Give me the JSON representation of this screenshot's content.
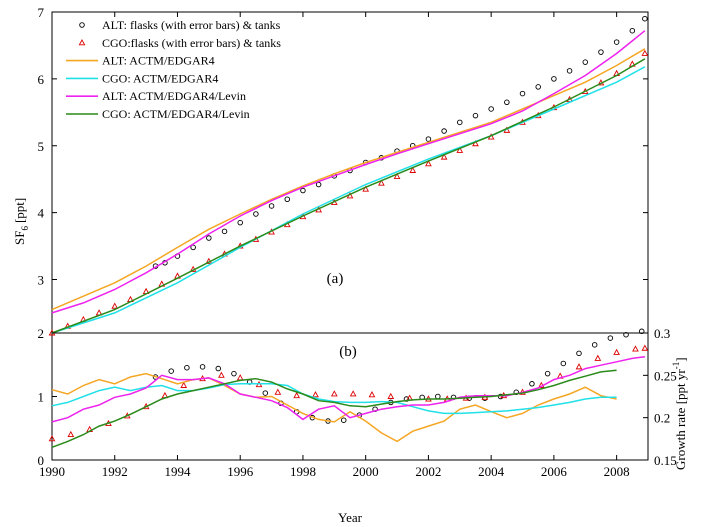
{
  "chart_data": [
    {
      "panel": "(a)",
      "type": "line",
      "ylabel": "SF₆ [ppt]",
      "ylabel_main": "SF",
      "ylabel_sub": "6",
      "ylabel_unit": "[ppt]",
      "ylim": [
        2.2,
        7
      ],
      "xlim": [
        1990,
        2009
      ],
      "yticks": [
        3,
        4,
        5,
        6,
        7
      ],
      "series": [
        {
          "name": "ALT: flasks (with error bars) & tanks",
          "marker": "circle",
          "color": "#000000",
          "x": [
            1993.3,
            1993.6,
            1994.0,
            1994.5,
            1995.0,
            1995.5,
            1996.0,
            1996.5,
            1997.0,
            1997.5,
            1998.0,
            1998.5,
            1999.0,
            1999.5,
            2000.0,
            2000.5,
            2001.0,
            2001.5,
            2002.0,
            2002.5,
            2003.0,
            2003.5,
            2004.0,
            2004.5,
            2005.0,
            2005.5,
            2006.0,
            2006.5,
            2007.0,
            2007.5,
            2008.0,
            2008.5,
            2008.9
          ],
          "values": [
            3.2,
            3.25,
            3.35,
            3.48,
            3.62,
            3.72,
            3.85,
            3.98,
            4.1,
            4.2,
            4.33,
            4.42,
            4.55,
            4.63,
            4.75,
            4.82,
            4.92,
            5.0,
            5.1,
            5.22,
            5.35,
            5.45,
            5.55,
            5.65,
            5.78,
            5.88,
            6.0,
            6.12,
            6.25,
            6.4,
            6.55,
            6.72,
            6.9
          ]
        },
        {
          "name": "CGO:flasks (with error bars) & tanks",
          "marker": "triangle",
          "color": "#dd0000",
          "x": [
            1990.0,
            1990.5,
            1991.0,
            1991.5,
            1992.0,
            1992.5,
            1993.0,
            1993.5,
            1994.0,
            1994.5,
            1995.0,
            1995.5,
            1996.0,
            1996.5,
            1997.0,
            1997.5,
            1998.0,
            1998.5,
            1999.0,
            1999.5,
            2000.0,
            2000.5,
            2001.0,
            2001.5,
            2002.0,
            2002.5,
            2003.0,
            2003.5,
            2004.0,
            2004.5,
            2005.0,
            2005.5,
            2006.0,
            2006.5,
            2007.0,
            2007.5,
            2008.0,
            2008.5,
            2008.9
          ],
          "values": [
            2.2,
            2.3,
            2.4,
            2.5,
            2.6,
            2.7,
            2.82,
            2.93,
            3.05,
            3.15,
            3.27,
            3.38,
            3.5,
            3.6,
            3.71,
            3.82,
            3.94,
            4.04,
            4.15,
            4.25,
            4.35,
            4.44,
            4.54,
            4.63,
            4.73,
            4.83,
            4.93,
            5.03,
            5.13,
            5.23,
            5.35,
            5.45,
            5.57,
            5.69,
            5.81,
            5.94,
            6.08,
            6.22,
            6.38
          ]
        },
        {
          "name": "ALT: ACTM/EDGAR4",
          "color": "#f5a623",
          "x": [
            1990.0,
            1991.0,
            1992.0,
            1993.0,
            1994.0,
            1995.0,
            1996.0,
            1997.0,
            1998.0,
            1999.0,
            2000.0,
            2001.0,
            2002.0,
            2003.0,
            2004.0,
            2005.0,
            2006.0,
            2007.0,
            2008.0,
            2008.9
          ],
          "values": [
            2.55,
            2.75,
            2.95,
            3.2,
            3.48,
            3.75,
            3.98,
            4.2,
            4.4,
            4.58,
            4.75,
            4.9,
            5.05,
            5.2,
            5.35,
            5.55,
            5.75,
            5.95,
            6.2,
            6.45
          ]
        },
        {
          "name": "CGO: ACTM/EDGAR4",
          "color": "#20e0e8",
          "x": [
            1990.0,
            1992.0,
            1994.0,
            1996.0,
            1998.0,
            2000.0,
            2002.0,
            2004.0,
            2006.0,
            2008.0,
            2008.9
          ],
          "values": [
            2.2,
            2.5,
            2.95,
            3.48,
            3.98,
            4.42,
            4.8,
            5.15,
            5.55,
            5.95,
            6.18
          ]
        },
        {
          "name": "ALT: ACTM/EDGAR4/Levin",
          "color": "#ee22ee",
          "x": [
            1990.0,
            1991.0,
            1992.0,
            1993.0,
            1994.0,
            1995.0,
            1996.0,
            1997.0,
            1998.0,
            1999.0,
            2000.0,
            2001.0,
            2002.0,
            2003.0,
            2004.0,
            2005.0,
            2006.0,
            2007.0,
            2008.0,
            2008.9
          ],
          "values": [
            2.5,
            2.65,
            2.85,
            3.1,
            3.38,
            3.68,
            3.95,
            4.18,
            4.38,
            4.55,
            4.72,
            4.88,
            5.03,
            5.18,
            5.33,
            5.52,
            5.78,
            6.05,
            6.38,
            6.72
          ]
        },
        {
          "name": "CGO: ACTM/EDGAR4/Levin",
          "color": "#2a8a1a",
          "x": [
            1990.0,
            1992.0,
            1994.0,
            1996.0,
            1998.0,
            2000.0,
            2002.0,
            2004.0,
            2006.0,
            2008.0,
            2008.9
          ],
          "values": [
            2.2,
            2.55,
            3.02,
            3.5,
            3.95,
            4.38,
            4.77,
            5.15,
            5.58,
            6.05,
            6.3
          ]
        }
      ]
    },
    {
      "panel": "(b)",
      "type": "line",
      "xlabel": "Year",
      "ylabel_right": "Growth rate [ppt yr⁻¹]",
      "ylabel_right_main": "Growth rate [ppt yr",
      "ylabel_right_sup": "-1",
      "ylabel_right_end": "]",
      "xlim": [
        1990,
        2009
      ],
      "ylim_left": [
        0,
        2
      ],
      "ylim_right": [
        0.15,
        0.3
      ],
      "xticks": [
        1990,
        1992,
        1994,
        1996,
        1998,
        2000,
        2002,
        2004,
        2006,
        2008
      ],
      "yticks_left": [
        0,
        1,
        2
      ],
      "yticks_right": [
        0.15,
        0.2,
        0.25,
        0.3
      ],
      "series": [
        {
          "name": "ALT: flasks (with error bars) & tanks",
          "marker": "circle",
          "color": "#000000",
          "x": [
            1993.3,
            1993.8,
            1994.3,
            1994.8,
            1995.3,
            1995.8,
            1996.3,
            1996.8,
            1997.3,
            1997.8,
            1998.3,
            1998.8,
            1999.3,
            1999.8,
            2000.3,
            2000.8,
            2001.3,
            2001.8,
            2002.3,
            2002.8,
            2003.3,
            2003.8,
            2004.3,
            2004.8,
            2005.3,
            2005.8,
            2006.3,
            2006.8,
            2007.3,
            2007.8,
            2008.3,
            2008.8
          ],
          "values": [
            0.248,
            0.255,
            0.259,
            0.26,
            0.258,
            0.252,
            0.242,
            0.229,
            0.217,
            0.207,
            0.2,
            0.196,
            0.197,
            0.203,
            0.21,
            0.218,
            0.222,
            0.224,
            0.225,
            0.224,
            0.223,
            0.223,
            0.225,
            0.23,
            0.24,
            0.252,
            0.264,
            0.276,
            0.286,
            0.294,
            0.298,
            0.302
          ]
        },
        {
          "name": "CGO:flasks (with error bars) & tanks",
          "marker": "triangle",
          "color": "#dd0000",
          "x": [
            1990.0,
            1990.6,
            1991.2,
            1991.8,
            1992.4,
            1993.0,
            1993.6,
            1994.2,
            1994.8,
            1995.4,
            1996.0,
            1996.6,
            1997.2,
            1997.8,
            1998.4,
            1999.0,
            1999.6,
            2000.2,
            2000.8,
            2001.4,
            2002.0,
            2002.6,
            2003.2,
            2003.8,
            2004.4,
            2005.0,
            2005.6,
            2006.2,
            2006.8,
            2007.4,
            2008.0,
            2008.6,
            2008.9
          ],
          "values": [
            0.175,
            0.18,
            0.186,
            0.193,
            0.202,
            0.213,
            0.226,
            0.238,
            0.246,
            0.25,
            0.247,
            0.239,
            0.23,
            0.226,
            0.227,
            0.228,
            0.228,
            0.227,
            0.225,
            0.223,
            0.222,
            0.222,
            0.223,
            0.224,
            0.226,
            0.23,
            0.238,
            0.249,
            0.26,
            0.27,
            0.277,
            0.281,
            0.282
          ]
        },
        {
          "name": "ALT: ACTM/EDGAR4",
          "color": "#f5a623",
          "x": [
            1990.0,
            1990.5,
            1991.0,
            1991.5,
            1992.0,
            1992.5,
            1993.0,
            1993.5,
            1994.0,
            1994.5,
            1995.0,
            1995.5,
            1996.0,
            1996.5,
            1997.0,
            1997.5,
            1998.0,
            1998.5,
            1999.0,
            1999.5,
            2000.0,
            2000.5,
            2001.0,
            2001.5,
            2002.0,
            2002.5,
            2003.0,
            2003.5,
            2004.0,
            2004.5,
            2005.0,
            2005.5,
            2006.0,
            2006.5,
            2007.0,
            2007.5,
            2008.0
          ],
          "values": [
            0.233,
            0.228,
            0.238,
            0.245,
            0.24,
            0.248,
            0.252,
            0.246,
            0.24,
            0.245,
            0.247,
            0.238,
            0.228,
            0.224,
            0.225,
            0.215,
            0.205,
            0.198,
            0.195,
            0.207,
            0.196,
            0.182,
            0.172,
            0.184,
            0.19,
            0.196,
            0.21,
            0.215,
            0.207,
            0.2,
            0.205,
            0.215,
            0.222,
            0.228,
            0.236,
            0.226,
            0.222
          ]
        },
        {
          "name": "CGO: ACTM/EDGAR4",
          "color": "#20e0e8",
          "x": [
            1990.0,
            1990.5,
            1991.0,
            1991.5,
            1992.0,
            1992.5,
            1993.0,
            1993.5,
            1994.0,
            1994.5,
            1995.0,
            1995.5,
            1996.0,
            1996.5,
            1997.0,
            1997.5,
            1998.0,
            1998.5,
            1999.0,
            1999.5,
            2000.0,
            2000.5,
            2001.0,
            2001.5,
            2002.0,
            2002.5,
            2003.0,
            2003.5,
            2004.0,
            2004.5,
            2005.0,
            2005.5,
            2006.0,
            2006.5,
            2007.0,
            2007.5,
            2008.0
          ],
          "values": [
            0.214,
            0.218,
            0.225,
            0.232,
            0.236,
            0.232,
            0.236,
            0.238,
            0.232,
            0.232,
            0.235,
            0.239,
            0.24,
            0.24,
            0.24,
            0.238,
            0.228,
            0.222,
            0.219,
            0.218,
            0.218,
            0.219,
            0.218,
            0.213,
            0.208,
            0.205,
            0.205,
            0.206,
            0.207,
            0.208,
            0.21,
            0.212,
            0.215,
            0.218,
            0.222,
            0.224,
            0.224
          ]
        },
        {
          "name": "ALT: ACTM/EDGAR4/Levin",
          "color": "#ee22ee",
          "x": [
            1990.0,
            1990.5,
            1991.0,
            1991.5,
            1992.0,
            1992.5,
            1993.0,
            1993.5,
            1994.0,
            1994.5,
            1995.0,
            1995.5,
            1996.0,
            1996.5,
            1997.0,
            1997.5,
            1998.0,
            1998.5,
            1999.0,
            1999.5,
            2000.0,
            2000.5,
            2001.0,
            2001.5,
            2002.0,
            2002.5,
            2003.0,
            2003.5,
            2004.0,
            2004.5,
            2005.0,
            2005.5,
            2006.0,
            2006.5,
            2007.0,
            2007.5,
            2008.0,
            2008.5,
            2008.9
          ],
          "values": [
            0.195,
            0.2,
            0.21,
            0.215,
            0.224,
            0.228,
            0.235,
            0.25,
            0.245,
            0.245,
            0.247,
            0.24,
            0.228,
            0.224,
            0.22,
            0.212,
            0.198,
            0.21,
            0.214,
            0.2,
            0.205,
            0.21,
            0.213,
            0.215,
            0.215,
            0.218,
            0.224,
            0.226,
            0.226,
            0.226,
            0.23,
            0.235,
            0.245,
            0.25,
            0.258,
            0.262,
            0.266,
            0.27,
            0.272
          ]
        },
        {
          "name": "CGO: ACTM/EDGAR4/Levin",
          "color": "#2a8a1a",
          "x": [
            1990.0,
            1990.5,
            1991.0,
            1991.5,
            1992.0,
            1992.5,
            1993.0,
            1993.5,
            1994.0,
            1994.5,
            1995.0,
            1995.5,
            1996.0,
            1996.5,
            1997.0,
            1997.5,
            1998.0,
            1998.5,
            1999.0,
            1999.5,
            2000.0,
            2000.5,
            2001.0,
            2001.5,
            2002.0,
            2002.5,
            2003.0,
            2003.5,
            2004.0,
            2004.5,
            2005.0,
            2005.5,
            2006.0,
            2006.5,
            2007.0,
            2007.5,
            2008.0
          ],
          "values": [
            0.165,
            0.172,
            0.18,
            0.19,
            0.196,
            0.204,
            0.213,
            0.222,
            0.228,
            0.232,
            0.236,
            0.24,
            0.244,
            0.246,
            0.242,
            0.234,
            0.228,
            0.22,
            0.218,
            0.214,
            0.213,
            0.216,
            0.219,
            0.221,
            0.222,
            0.222,
            0.223,
            0.224,
            0.225,
            0.227,
            0.229,
            0.233,
            0.238,
            0.244,
            0.249,
            0.254,
            0.256
          ]
        }
      ]
    }
  ]
}
